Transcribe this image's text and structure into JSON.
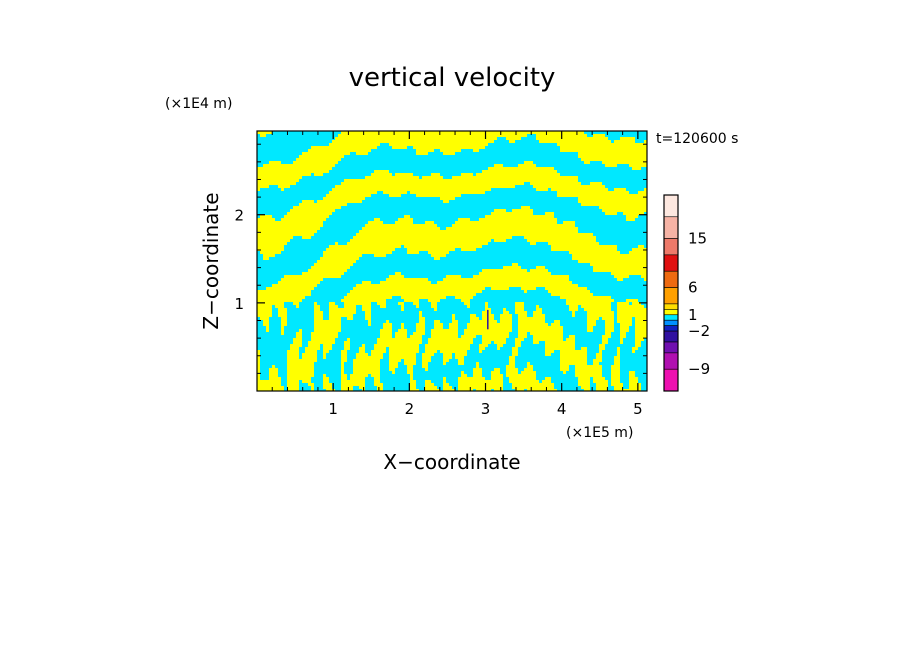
{
  "chart_data": {
    "type": "heatmap",
    "title": "vertical velocity",
    "xlabel": "X−coordinate",
    "ylabel": "Z−coordinate",
    "x_unit": "(×1E5 m)",
    "y_unit": "(×1E4 m)",
    "time_label": "t=120600 s",
    "xlim": [
      0,
      5.12
    ],
    "ylim": [
      0,
      2.95
    ],
    "x_ticks": [
      "1",
      "2",
      "3",
      "4",
      "5"
    ],
    "y_ticks": [
      "1",
      "2"
    ],
    "x_tick_values": [
      1,
      2,
      3,
      4,
      5
    ],
    "y_tick_values": [
      1,
      2
    ],
    "field_colors": {
      "positive": "#ffff00",
      "negative": "#00e8ff"
    },
    "colorbar": {
      "labels": [
        "15",
        "6",
        "1",
        "−2",
        "−9"
      ],
      "label_values": [
        15,
        6,
        1,
        -2,
        -9
      ],
      "vmin": -13,
      "vmax": 23,
      "bands": [
        {
          "from": 19,
          "to": 23,
          "color": "#fde8e0"
        },
        {
          "from": 15,
          "to": 19,
          "color": "#f6b3a5"
        },
        {
          "from": 12,
          "to": 15,
          "color": "#ee7a6a"
        },
        {
          "from": 9,
          "to": 12,
          "color": "#e01010"
        },
        {
          "from": 6,
          "to": 9,
          "color": "#ee6a10"
        },
        {
          "from": 3,
          "to": 6,
          "color": "#ffa000"
        },
        {
          "from": 2,
          "to": 3,
          "color": "#ffdd00"
        },
        {
          "from": 1,
          "to": 2,
          "color": "#ffff00"
        },
        {
          "from": 0,
          "to": 1,
          "color": "#00e8ff"
        },
        {
          "from": -1,
          "to": 0,
          "color": "#0090ff"
        },
        {
          "from": -2,
          "to": -1,
          "color": "#1020c0"
        },
        {
          "from": -4,
          "to": -2,
          "color": "#3010a0"
        },
        {
          "from": -6,
          "to": -4,
          "color": "#7010b0"
        },
        {
          "from": -9,
          "to": -6,
          "color": "#b010b0"
        },
        {
          "from": -13,
          "to": -9,
          "color": "#ee10b0"
        }
      ]
    }
  }
}
